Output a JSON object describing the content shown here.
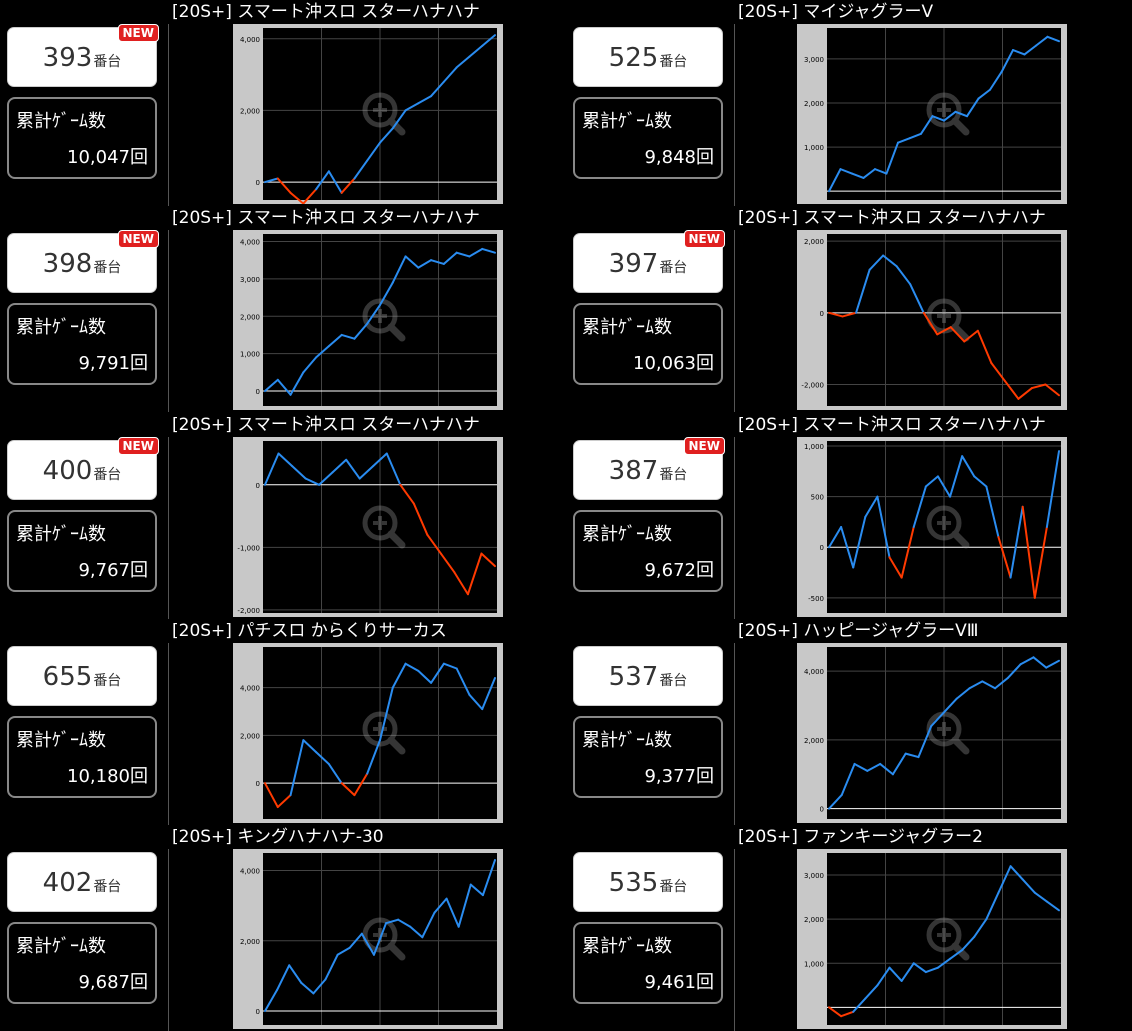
{
  "machine_suffix": "番台",
  "games_label": "累計ｹﾞｰﾑ数",
  "new_label": "NEW",
  "colors": {
    "positive": "#2a8cf0",
    "negative": "#ff3a00",
    "plot_bg": "#000000",
    "frame": "#c8c8c8"
  },
  "cells": [
    {
      "title": "[20S+] スマート沖スロ スターハナハナ",
      "machine_no": "393",
      "is_new": true,
      "games": "10,047回"
    },
    {
      "title": "[20S+] マイジャグラーV",
      "machine_no": "525",
      "is_new": false,
      "games": "9,848回"
    },
    {
      "title": "[20S+] スマート沖スロ スターハナハナ",
      "machine_no": "398",
      "is_new": true,
      "games": "9,791回"
    },
    {
      "title": "[20S+] スマート沖スロ スターハナハナ",
      "machine_no": "397",
      "is_new": true,
      "games": "10,063回"
    },
    {
      "title": "[20S+] スマート沖スロ スターハナハナ",
      "machine_no": "400",
      "is_new": true,
      "games": "9,767回"
    },
    {
      "title": "[20S+] スマート沖スロ スターハナハナ",
      "machine_no": "387",
      "is_new": true,
      "games": "9,672回"
    },
    {
      "title": "[20S+] パチスロ からくりサーカス",
      "machine_no": "655",
      "is_new": false,
      "games": "10,180回"
    },
    {
      "title": "[20S+] ハッピージャグラーVⅢ",
      "machine_no": "537",
      "is_new": false,
      "games": "9,377回"
    },
    {
      "title": "[20S+] キングハナハナ-30",
      "machine_no": "402",
      "is_new": false,
      "games": "9,687回"
    },
    {
      "title": "[20S+] ファンキージャグラー2",
      "machine_no": "535",
      "is_new": false,
      "games": "9,461回"
    }
  ],
  "chart_data": [
    {
      "type": "line",
      "ylim": [
        -500,
        4300
      ],
      "yticks": [
        0,
        2000,
        4000
      ],
      "tick_labels": [
        "0",
        "2,000",
        "4,000"
      ],
      "grid": true,
      "series": [
        {
          "values": [
            0,
            100,
            -300,
            -600,
            -200,
            300,
            -300,
            100,
            600,
            1100,
            1500,
            2000,
            2200,
            2400,
            2800,
            3200,
            3500,
            3800,
            4100
          ]
        }
      ]
    },
    {
      "type": "line",
      "ylim": [
        -200,
        3700
      ],
      "yticks": [
        1000,
        2000,
        3000
      ],
      "tick_labels": [
        "1,000",
        "2,000",
        "3,000"
      ],
      "grid": true,
      "series": [
        {
          "values": [
            0,
            500,
            400,
            300,
            500,
            400,
            1100,
            1200,
            1300,
            1700,
            1600,
            1800,
            1700,
            2100,
            2300,
            2700,
            3200,
            3100,
            3300,
            3500,
            3400
          ]
        }
      ]
    },
    {
      "type": "line",
      "ylim": [
        -400,
        4200
      ],
      "yticks": [
        0,
        1000,
        2000,
        3000,
        4000
      ],
      "tick_labels": [
        "0",
        "1,000",
        "2,000",
        "3,000",
        "4,000"
      ],
      "grid": true,
      "series": [
        {
          "values": [
            0,
            300,
            -100,
            500,
            900,
            1200,
            1500,
            1400,
            1800,
            2300,
            2900,
            3600,
            3300,
            3500,
            3400,
            3700,
            3600,
            3800,
            3700
          ]
        }
      ]
    },
    {
      "type": "line",
      "ylim": [
        -2600,
        2200
      ],
      "yticks": [
        -2000,
        0,
        2000
      ],
      "tick_labels": [
        "-2,000",
        "0",
        "2,000"
      ],
      "grid": true,
      "series": [
        {
          "values": [
            0,
            -100,
            0,
            1200,
            1600,
            1300,
            800,
            0,
            -600,
            -400,
            -800,
            -500,
            -1400,
            -1900,
            -2400,
            -2100,
            -2000,
            -2300
          ]
        }
      ]
    },
    {
      "type": "line",
      "ylim": [
        -2050,
        700
      ],
      "yticks": [
        -2000,
        -1000,
        0
      ],
      "tick_labels": [
        "-2,000",
        "-1,000",
        "0"
      ],
      "grid": true,
      "series": [
        {
          "values": [
            0,
            500,
            300,
            100,
            0,
            200,
            400,
            100,
            300,
            500,
            0,
            -300,
            -800,
            -1100,
            -1400,
            -1750,
            -1100,
            -1300
          ]
        }
      ]
    },
    {
      "type": "line",
      "ylim": [
        -650,
        1050
      ],
      "yticks": [
        -500,
        0,
        500,
        1000
      ],
      "tick_labels": [
        "-500",
        "0",
        "500",
        "1,000"
      ],
      "grid": true,
      "series": [
        {
          "values": [
            0,
            200,
            -200,
            300,
            500,
            -100,
            -300,
            200,
            600,
            700,
            500,
            900,
            700,
            600,
            100,
            -300,
            400,
            -500,
            200,
            950
          ]
        }
      ]
    },
    {
      "type": "line",
      "ylim": [
        -1500,
        5700
      ],
      "yticks": [
        0,
        2000,
        4000
      ],
      "tick_labels": [
        "0",
        "2,000",
        "4,000"
      ],
      "grid": true,
      "series": [
        {
          "values": [
            0,
            -1000,
            -500,
            1800,
            1300,
            800,
            0,
            -500,
            400,
            1800,
            4000,
            5000,
            4700,
            4200,
            5000,
            4800,
            3700,
            3100,
            4400
          ]
        }
      ]
    },
    {
      "type": "line",
      "ylim": [
        -300,
        4700
      ],
      "yticks": [
        0,
        2000,
        4000
      ],
      "tick_labels": [
        "0",
        "2,000",
        "4,000"
      ],
      "grid": true,
      "series": [
        {
          "values": [
            0,
            400,
            1300,
            1100,
            1300,
            1000,
            1600,
            1500,
            2400,
            2800,
            3200,
            3500,
            3700,
            3500,
            3800,
            4200,
            4400,
            4100,
            4300
          ]
        }
      ]
    },
    {
      "type": "line",
      "ylim": [
        -400,
        4500
      ],
      "yticks": [
        0,
        2000,
        4000
      ],
      "tick_labels": [
        "0",
        "2,000",
        "4,000"
      ],
      "grid": true,
      "series": [
        {
          "values": [
            0,
            600,
            1300,
            800,
            500,
            900,
            1600,
            1800,
            2200,
            1600,
            2500,
            2600,
            2400,
            2100,
            2800,
            3200,
            2400,
            3600,
            3300,
            4300
          ]
        }
      ]
    },
    {
      "type": "line",
      "ylim": [
        -400,
        3500
      ],
      "yticks": [
        1000,
        2000,
        3000
      ],
      "tick_labels": [
        "1,000",
        "2,000",
        "3,000"
      ],
      "grid": true,
      "series": [
        {
          "values": [
            0,
            -200,
            -100,
            200,
            500,
            900,
            600,
            1000,
            800,
            900,
            1100,
            1300,
            1600,
            2000,
            2600,
            3200,
            2900,
            2600,
            2400,
            2200
          ]
        }
      ]
    }
  ]
}
